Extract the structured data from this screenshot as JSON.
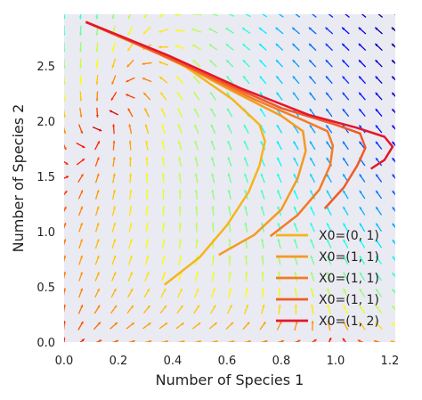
{
  "chart_data": {
    "type": "line",
    "subtype": "phase-portrait with quiver field",
    "title": "",
    "xlabel": "Number of Species 1",
    "ylabel": "Number of Species 2",
    "xlim": [
      0.0,
      1.22
    ],
    "ylim": [
      0.0,
      2.97
    ],
    "xticks": [
      "0.0",
      "0.2",
      "0.4",
      "0.6",
      "0.8",
      "1.0",
      "1.2"
    ],
    "yticks": [
      "0.0",
      "0.5",
      "1.0",
      "1.5",
      "2.0",
      "2.5"
    ],
    "grid": false,
    "background": "#eaeaf2",
    "legend_position": "lower-right",
    "quiver_colormap": "jet",
    "series": [
      {
        "name": "X0=(0, 1)",
        "color": "#f5b51c",
        "points": [
          [
            0.37,
            0.52
          ],
          [
            0.5,
            0.77
          ],
          [
            0.6,
            1.06
          ],
          [
            0.68,
            1.36
          ],
          [
            0.72,
            1.6
          ],
          [
            0.74,
            1.82
          ],
          [
            0.72,
            1.97
          ],
          [
            0.62,
            2.2
          ],
          [
            0.45,
            2.49
          ],
          [
            0.25,
            2.73
          ],
          [
            0.08,
            2.9
          ]
        ]
      },
      {
        "name": "X0=(1, 1)",
        "color": "#f59a22",
        "points": [
          [
            0.57,
            0.79
          ],
          [
            0.7,
            0.97
          ],
          [
            0.8,
            1.2
          ],
          [
            0.86,
            1.48
          ],
          [
            0.89,
            1.73
          ],
          [
            0.88,
            1.91
          ],
          [
            0.8,
            2.05
          ],
          [
            0.6,
            2.3
          ],
          [
            0.4,
            2.56
          ],
          [
            0.2,
            2.77
          ],
          [
            0.08,
            2.9
          ]
        ]
      },
      {
        "name": "X0=(1, 1)",
        "color": "#f47b25",
        "points": [
          [
            0.76,
            0.96
          ],
          [
            0.86,
            1.15
          ],
          [
            0.94,
            1.38
          ],
          [
            0.98,
            1.6
          ],
          [
            0.99,
            1.78
          ],
          [
            0.97,
            1.91
          ],
          [
            0.88,
            2.01
          ],
          [
            0.7,
            2.2
          ],
          [
            0.45,
            2.5
          ],
          [
            0.22,
            2.75
          ],
          [
            0.08,
            2.9
          ]
        ]
      },
      {
        "name": "X0=(1, 1)",
        "color": "#f05a28",
        "points": [
          [
            0.96,
            1.21
          ],
          [
            1.03,
            1.4
          ],
          [
            1.08,
            1.6
          ],
          [
            1.11,
            1.76
          ],
          [
            1.09,
            1.89
          ],
          [
            1.0,
            1.97
          ],
          [
            0.8,
            2.12
          ],
          [
            0.55,
            2.39
          ],
          [
            0.3,
            2.67
          ],
          [
            0.08,
            2.9
          ]
        ]
      },
      {
        "name": "X0=(1, 2)",
        "color": "#e3162c",
        "points": [
          [
            1.13,
            1.57
          ],
          [
            1.18,
            1.65
          ],
          [
            1.21,
            1.77
          ],
          [
            1.18,
            1.86
          ],
          [
            1.08,
            1.94
          ],
          [
            0.9,
            2.06
          ],
          [
            0.65,
            2.3
          ],
          [
            0.38,
            2.6
          ],
          [
            0.15,
            2.83
          ],
          [
            0.08,
            2.9
          ]
        ]
      }
    ]
  }
}
